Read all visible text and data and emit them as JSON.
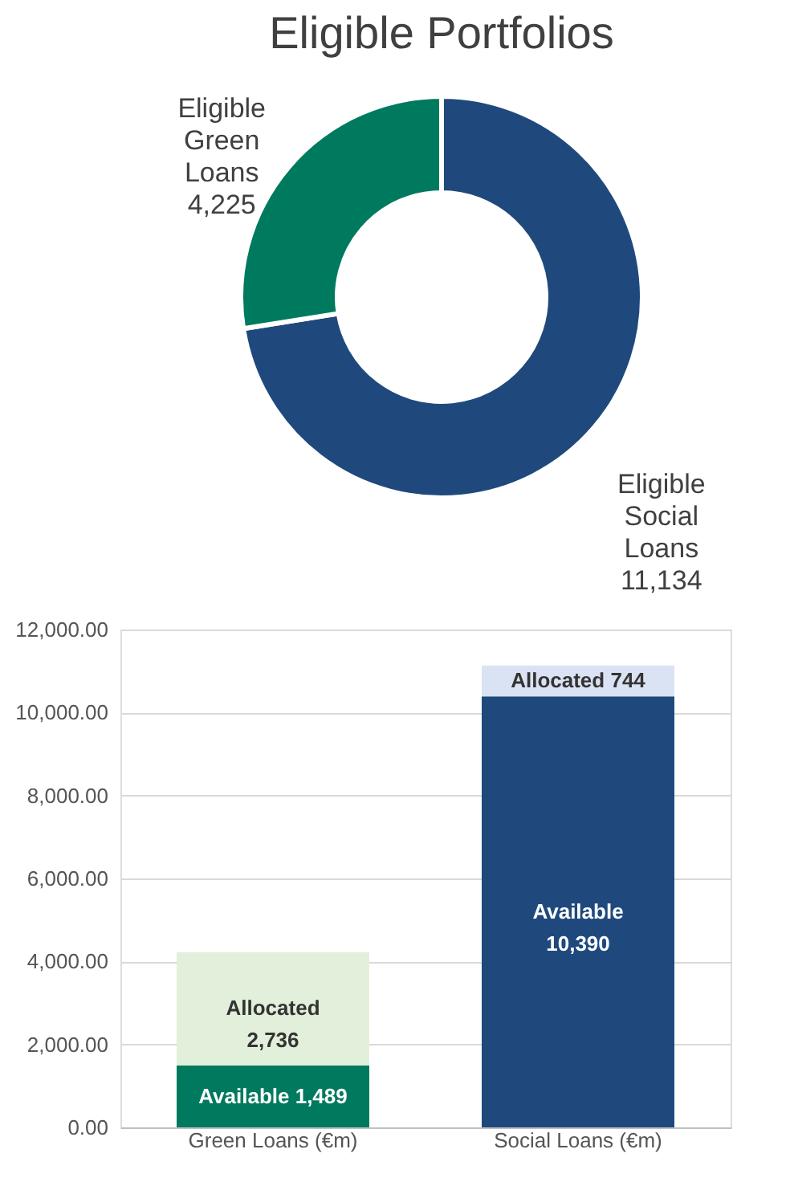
{
  "chart_data": [
    {
      "type": "donut",
      "title": "Eligible Portfolios",
      "categories": [
        "Eligible Social Loans",
        "Eligible Green Loans"
      ],
      "values": [
        11134,
        4225
      ],
      "colors": [
        "#1f497d",
        "#007a5e"
      ],
      "value_labels": [
        "11,134",
        "4,225"
      ]
    },
    {
      "type": "bar",
      "stacked": true,
      "categories": [
        "Green Loans (€m)",
        "Social Loans (€m)"
      ],
      "series": [
        {
          "name": "Available",
          "colors": [
            "#007a5e",
            "#1f497d"
          ],
          "values": [
            1489,
            10390
          ],
          "value_labels": [
            "1,489",
            "10,390"
          ]
        },
        {
          "name": "Allocated",
          "colors": [
            "#e2efda",
            "#dae3f3"
          ],
          "values": [
            2736,
            744
          ],
          "value_labels": [
            "2,736",
            "744"
          ]
        }
      ],
      "ylim": [
        0,
        12000
      ],
      "yticks": [
        {
          "value": 0,
          "label": "0.00"
        },
        {
          "value": 2000,
          "label": "2,000.00"
        },
        {
          "value": 4000,
          "label": "4,000.00"
        },
        {
          "value": 6000,
          "label": "6,000.00"
        },
        {
          "value": 8000,
          "label": "8,000.00"
        },
        {
          "value": 10000,
          "label": "10,000.00"
        },
        {
          "value": 12000,
          "label": "12,000.00"
        }
      ],
      "grid": "y"
    }
  ]
}
